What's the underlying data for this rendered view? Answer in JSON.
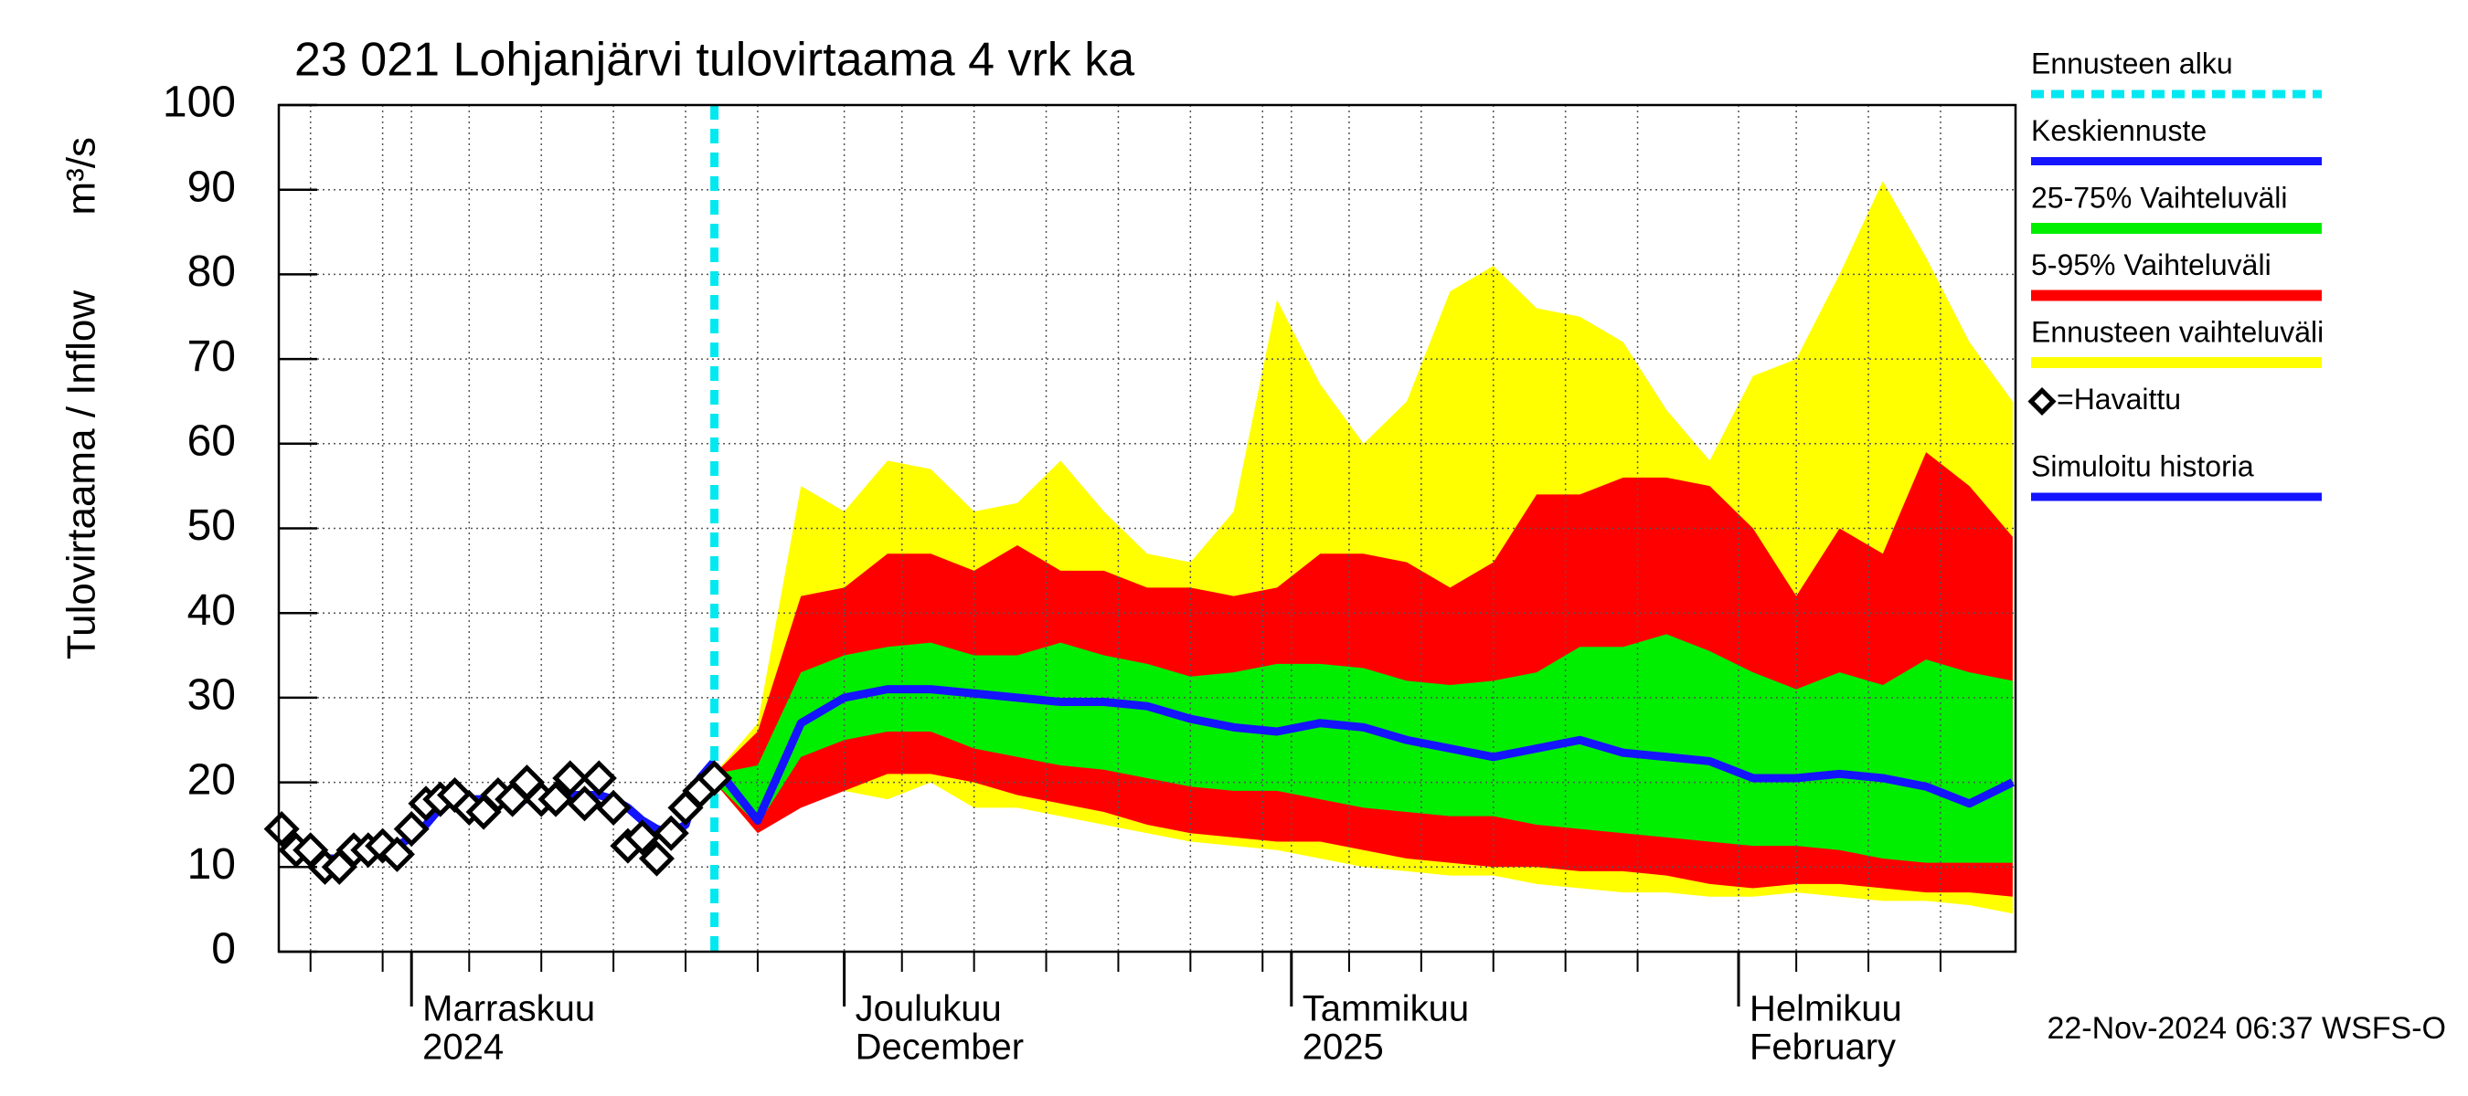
{
  "chart_data": {
    "type": "hydrograph",
    "title": "23 021 Lohjanjärvi tulovirtaama 4 vrk ka",
    "y_label": "Tulovirtaama / Inflow",
    "y_unit": "m³/s",
    "footer": "22-Nov-2024 06:37 WSFS-O",
    "ylim": [
      0,
      100
    ],
    "yticks": [
      0,
      10,
      20,
      30,
      40,
      50,
      60,
      70,
      80,
      90,
      100
    ],
    "xlim": [
      -9.2,
      111.2
    ],
    "xticks": [
      {
        "value": 0,
        "label": [
          "Marraskuu",
          "2024"
        ]
      },
      {
        "value": 30,
        "label": [
          "Joulukuu",
          "December"
        ]
      },
      {
        "value": 61,
        "label": [
          "Tammikuu",
          "2025"
        ]
      },
      {
        "value": 92,
        "label": [
          "Helmikuu",
          "February"
        ]
      }
    ],
    "xgrid": [
      -7,
      -2,
      4,
      9,
      14,
      19,
      24,
      34,
      39,
      44,
      49,
      54,
      59,
      65,
      70,
      75,
      80,
      85,
      96,
      101,
      106
    ],
    "grid": true,
    "forecast_start": {
      "name": "Ennusteen alku",
      "color": "#00e8f0",
      "x": 21
    },
    "series": [
      {
        "name": "Keskiennuste",
        "kind": "line",
        "color": "#1414ff",
        "x": [
          21,
          24,
          27,
          30,
          33,
          36,
          39,
          42,
          45,
          48,
          51,
          54,
          57,
          60,
          63,
          66,
          69,
          72,
          75,
          78,
          81,
          84,
          87,
          90,
          93,
          96,
          99,
          102,
          105,
          108,
          111
        ],
        "values": [
          22,
          15.5,
          27,
          30,
          31,
          31,
          30.5,
          30,
          29.5,
          29.5,
          29,
          27.5,
          26.5,
          26,
          27,
          26.5,
          25,
          24,
          23,
          24,
          25,
          23.5,
          23,
          22.5,
          20.5,
          20.5,
          21,
          20.5,
          19.5,
          17.5,
          20
        ]
      },
      {
        "name": "25-75% Vaihteluväli",
        "kind": "band",
        "color": "#00ee00",
        "x": [
          21,
          24,
          27,
          30,
          33,
          36,
          39,
          42,
          45,
          48,
          51,
          54,
          57,
          60,
          63,
          66,
          69,
          72,
          75,
          78,
          81,
          84,
          87,
          90,
          93,
          96,
          99,
          102,
          105,
          108,
          111
        ],
        "lower": [
          20,
          15,
          23,
          25,
          26,
          26,
          24,
          23,
          22,
          21.5,
          20.5,
          19.5,
          19,
          19,
          18,
          17,
          16.5,
          16,
          16,
          15,
          14.5,
          14,
          13.5,
          13,
          12.5,
          12.5,
          12,
          11,
          10.5,
          10.5,
          10.5
        ],
        "upper": [
          21,
          22,
          33,
          35,
          36,
          36.5,
          35,
          35,
          36.5,
          35,
          34,
          32.5,
          33,
          34,
          34,
          33.5,
          32,
          31.5,
          32,
          33,
          36,
          36,
          37.5,
          35.5,
          33,
          31,
          33,
          31.5,
          34.5,
          33,
          32
        ]
      },
      {
        "name": "5-95% Vaihteluväli",
        "kind": "band",
        "color": "#ff0000",
        "x": [
          21,
          24,
          27,
          30,
          33,
          36,
          39,
          42,
          45,
          48,
          51,
          54,
          57,
          60,
          63,
          66,
          69,
          72,
          75,
          78,
          81,
          84,
          87,
          90,
          93,
          96,
          99,
          102,
          105,
          108,
          111
        ],
        "lower": [
          20,
          14,
          17,
          19,
          21,
          21,
          20,
          18.5,
          17.5,
          16.5,
          15,
          14,
          13.5,
          13,
          13,
          12,
          11,
          10.5,
          10,
          10,
          9.5,
          9.5,
          9,
          8,
          7.5,
          8,
          8,
          7.5,
          7,
          7,
          6.5
        ],
        "upper": [
          21,
          26,
          42,
          43,
          47,
          47,
          45,
          48,
          45,
          45,
          43,
          43,
          42,
          43,
          47,
          47,
          46,
          43,
          46,
          54,
          54,
          56,
          56,
          55,
          50,
          42,
          50,
          47,
          59,
          55,
          49
        ]
      },
      {
        "name": "Ennusteen vaihteluväli",
        "kind": "band",
        "color": "#ffff00",
        "x": [
          21,
          24,
          27,
          30,
          33,
          36,
          39,
          42,
          45,
          48,
          51,
          54,
          57,
          60,
          63,
          66,
          69,
          72,
          75,
          78,
          81,
          84,
          87,
          90,
          93,
          96,
          99,
          102,
          105,
          108,
          111
        ],
        "lower": [
          20,
          14,
          18,
          19,
          18,
          20,
          17,
          17,
          16,
          15,
          14,
          13,
          12.5,
          12,
          11,
          10,
          9.5,
          9,
          9,
          8,
          7.5,
          7,
          7,
          6.5,
          6.5,
          7,
          6.5,
          6,
          6,
          5.5,
          4.5
        ],
        "upper": [
          21,
          27,
          55,
          52,
          58,
          57,
          52,
          53,
          58,
          52,
          47,
          46,
          52,
          77,
          67,
          60,
          65,
          78,
          81,
          76,
          75,
          72,
          64,
          58,
          68,
          70,
          80,
          91,
          82,
          72,
          65
        ]
      },
      {
        "name": "=Havaittu",
        "kind": "points",
        "color": "#000000",
        "x": [
          -9,
          -8,
          -7,
          -6,
          -5,
          -4,
          -3,
          -2,
          -1,
          0,
          1,
          2,
          3,
          4,
          5,
          6,
          7,
          8,
          9,
          10,
          11,
          12,
          13,
          14,
          15,
          16,
          17,
          18,
          19,
          20,
          21
        ],
        "values": [
          14.5,
          12,
          12,
          10,
          10,
          12,
          12,
          12.5,
          11.5,
          14.5,
          17.5,
          18,
          18.5,
          17,
          16.5,
          18.5,
          18,
          20,
          18,
          18,
          20.5,
          17.5,
          20.5,
          17,
          12.5,
          13.5,
          11,
          14,
          17,
          19,
          20.5
        ]
      },
      {
        "name": "Simuloitu historia",
        "kind": "line",
        "color": "#1414ff",
        "x": [
          -9,
          -8,
          -7,
          -6,
          -5,
          -4,
          -3,
          -2,
          -1,
          0,
          1,
          2,
          3,
          4,
          5,
          6,
          7,
          8,
          9,
          10,
          11,
          12,
          13,
          14,
          15,
          16,
          17,
          18,
          19,
          20,
          21
        ],
        "values": [
          14.5,
          13,
          12,
          11,
          11,
          11.5,
          12,
          12,
          12.5,
          13.5,
          15,
          17,
          18,
          18,
          18,
          18,
          18,
          18,
          18.5,
          18.5,
          18.5,
          18.5,
          18.5,
          18,
          17,
          15.5,
          14.5,
          14,
          15,
          20.5,
          22.5
        ]
      }
    ]
  }
}
